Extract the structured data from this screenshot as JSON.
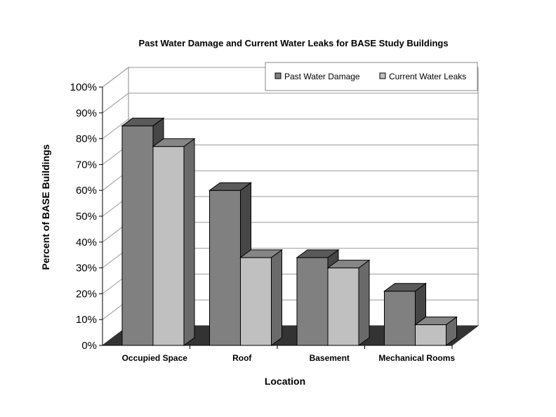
{
  "chart_data": {
    "type": "bar",
    "title": "Past Water Damage and Current Water Leaks for BASE Study Buildings",
    "xlabel": "Location",
    "ylabel": "Percent of BASE Buildings",
    "categories": [
      "Occupied Space",
      "Roof",
      "Basement",
      "Mechanical Rooms"
    ],
    "series": [
      {
        "name": "Past Water Damage",
        "values": [
          85,
          60,
          34,
          21
        ],
        "color": "#808080"
      },
      {
        "name": "Current Water Leaks",
        "values": [
          77,
          34,
          30,
          8
        ],
        "color": "#c0c0c0"
      }
    ],
    "ylim": [
      0,
      100
    ],
    "yticks": [
      "0%",
      "10%",
      "20%",
      "30%",
      "40%",
      "50%",
      "60%",
      "70%",
      "80%",
      "90%",
      "100%"
    ],
    "grid": true,
    "legend": "top-right",
    "floor_color": "#333333"
  }
}
